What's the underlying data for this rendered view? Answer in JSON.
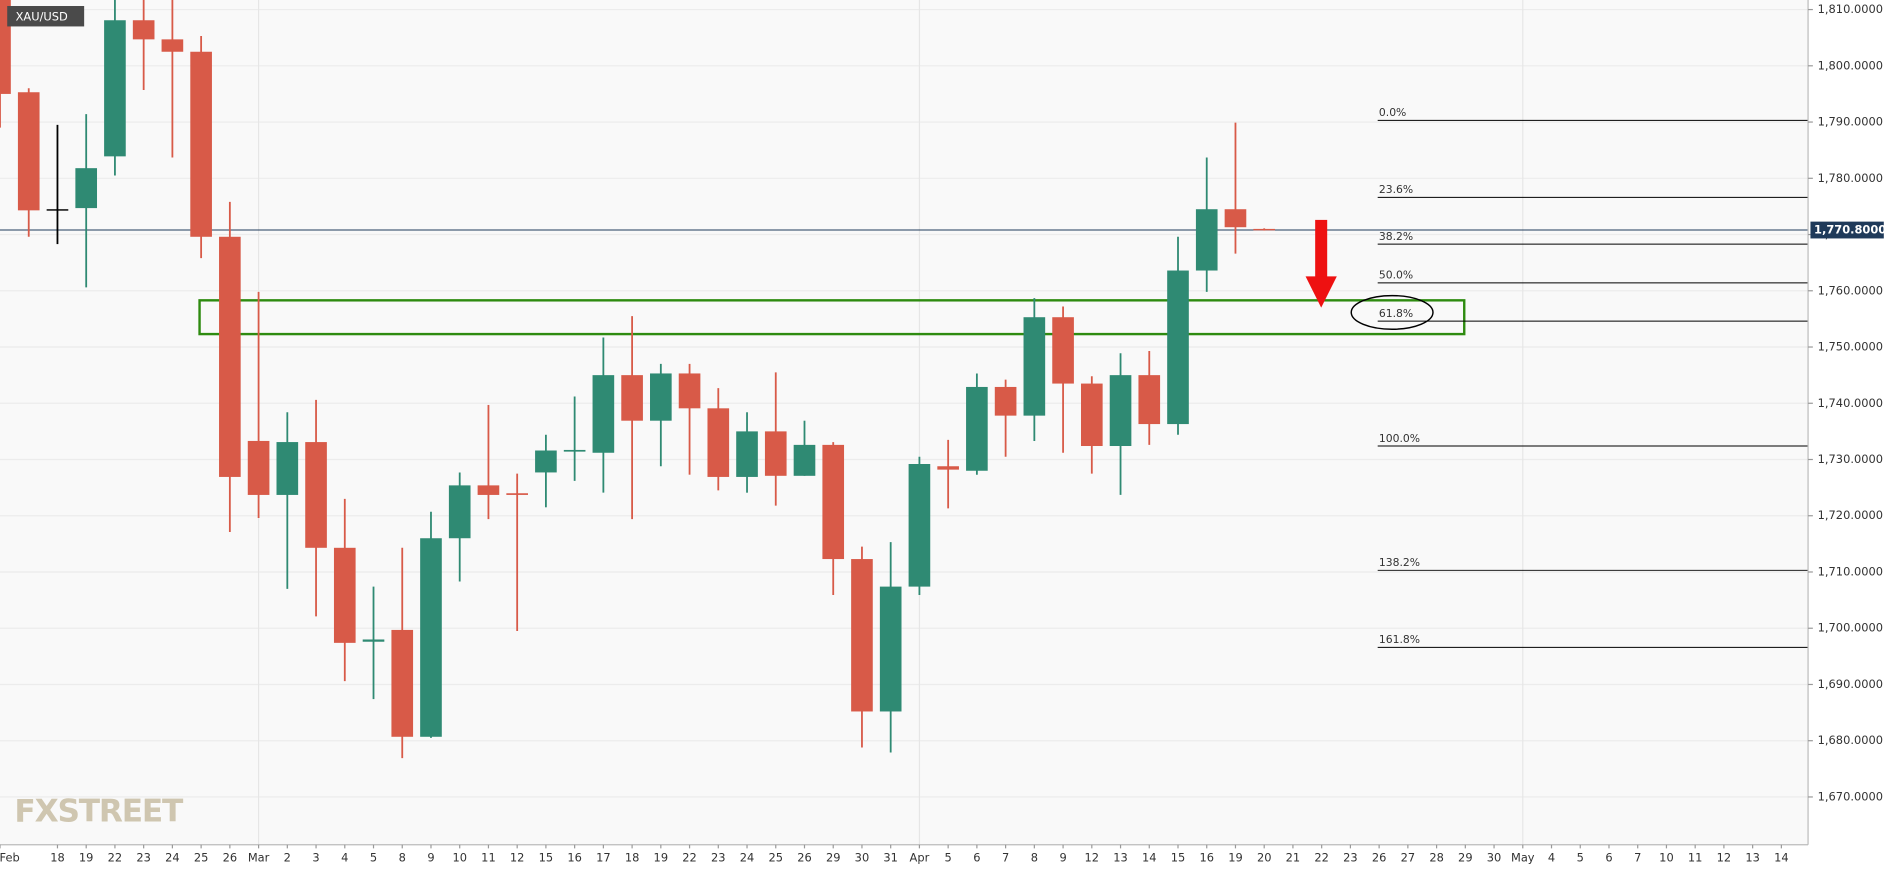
{
  "chart_data": {
    "type": "candlestick",
    "symbol": "XAU/USD",
    "watermark": "FXSTREET",
    "categories": [
      "Feb",
      null,
      "18",
      "19",
      "22",
      "23",
      "24",
      "25",
      "26",
      "Mar",
      "2",
      "3",
      "4",
      "5",
      "8",
      "9",
      "10",
      "11",
      "12",
      "15",
      "16",
      "17",
      "18",
      "19",
      "22",
      "23",
      "24",
      "25",
      "26",
      "29",
      "30",
      "31",
      "Apr",
      "5",
      "6",
      "7",
      "8",
      "9",
      "12",
      "13",
      "14",
      "15",
      "16",
      "19",
      "20",
      "21",
      "22",
      "23",
      "26",
      "27",
      "28",
      "29",
      "30",
      "May",
      "4",
      "5",
      "6",
      "7",
      "10",
      "11",
      "12",
      "13",
      "14"
    ],
    "open": [
      1818,
      1795.3,
      1774.5,
      1774.7,
      1783.9,
      1808.1,
      1804.7,
      1802.5,
      1769.6,
      1733.3,
      1723.7,
      1733.1,
      1714.3,
      1697.6,
      1699.7,
      1680.7,
      1716,
      1725.4,
      1724,
      1727.7,
      1731.4,
      1731.2,
      1745,
      1736.9,
      1745.3,
      1739.1,
      1726.9,
      1735,
      1727.1,
      1732.6,
      1712.3,
      1685.2,
      1707.4,
      1728.8,
      1728,
      1742.9,
      1737.8,
      1755.3,
      1743.5,
      1732.4,
      1745,
      1736.3,
      1763.6,
      1774.5,
      1771,
      null,
      null,
      null,
      null,
      null,
      null,
      null,
      null,
      null,
      null,
      null,
      null,
      null,
      null,
      null,
      null,
      null,
      null
    ],
    "high": [
      1820,
      1796,
      1789.5,
      1791.4,
      1813,
      1815,
      1813,
      1805.3,
      1775.8,
      1759.8,
      1738.4,
      1740.6,
      1723,
      1707.4,
      1714.3,
      1720.7,
      1727.7,
      1739.7,
      1727.5,
      1734.4,
      1741.2,
      1751.7,
      1755.5,
      1747,
      1747,
      1742.7,
      1738.4,
      1745.5,
      1736.9,
      1733.1,
      1714.5,
      1715.3,
      1730.5,
      1733.5,
      1745.3,
      1744.2,
      1758.7,
      1757.2,
      1744.8,
      1748.9,
      1749.3,
      1769.6,
      1783.7,
      1789.9,
      1771.1,
      null,
      null,
      null,
      null,
      null,
      null,
      null,
      null,
      null,
      null,
      null,
      null,
      null,
      null,
      null,
      null,
      null,
      null
    ],
    "low": [
      1789,
      1769.6,
      1768.3,
      1760.6,
      1780.5,
      1795.7,
      1783.7,
      1765.8,
      1717.1,
      1719.6,
      1707,
      1702.1,
      1690.6,
      1687.4,
      1676.9,
      1680.5,
      1708.3,
      1719.4,
      1699.5,
      1721.5,
      1726.2,
      1724.1,
      1719.4,
      1728.8,
      1727.3,
      1724.5,
      1724.1,
      1721.8,
      1727.1,
      1705.9,
      1678.8,
      1677.9,
      1705.9,
      1721.3,
      1727.3,
      1730.5,
      1733.3,
      1731.2,
      1727.5,
      1723.7,
      1732.6,
      1734.4,
      1759.8,
      1766.6,
      1770.7,
      null,
      null,
      null,
      null,
      null,
      null,
      null,
      null,
      null,
      null,
      null,
      null,
      null,
      null,
      null,
      null,
      null,
      null
    ],
    "close": [
      1795,
      1774.3,
      1774.5,
      1781.8,
      1808.1,
      1804.7,
      1802.5,
      1769.6,
      1726.9,
      1723.7,
      1733.1,
      1714.3,
      1697.4,
      1698,
      1680.7,
      1716,
      1725.4,
      1723.7,
      1723.7,
      1731.6,
      1731.7,
      1745,
      1736.9,
      1745.3,
      1739.1,
      1726.9,
      1735,
      1727.1,
      1732.6,
      1712.3,
      1685.2,
      1707.4,
      1729.2,
      1728.2,
      1742.9,
      1737.8,
      1755.3,
      1743.5,
      1732.4,
      1745,
      1736.3,
      1763.6,
      1774.5,
      1771.3,
      1770.8,
      null,
      null,
      null,
      null,
      null,
      null,
      null,
      null,
      null,
      null,
      null,
      null,
      null,
      null,
      null,
      null,
      null,
      null
    ],
    "colors": {
      "up": "#2f8a73",
      "down": "#d85a48",
      "flat": "#000000"
    },
    "ylim": [
      1661.5,
      1811.7
    ],
    "yticks": [
      {
        "value": 1670,
        "label": "1,670.0000"
      },
      {
        "value": 1680,
        "label": "1,680.0000"
      },
      {
        "value": 1690,
        "label": "1,690.0000"
      },
      {
        "value": 1700,
        "label": "1,700.0000"
      },
      {
        "value": 1710,
        "label": "1,710.0000"
      },
      {
        "value": 1720,
        "label": "1,720.0000"
      },
      {
        "value": 1730,
        "label": "1,730.0000"
      },
      {
        "value": 1740,
        "label": "1,740.0000"
      },
      {
        "value": 1750,
        "label": "1,750.0000"
      },
      {
        "value": 1760,
        "label": "1,760.0000"
      },
      {
        "value": 1770,
        "label": "1,770.0000"
      },
      {
        "value": 1780,
        "label": "1,780.0000"
      },
      {
        "value": 1790,
        "label": "1,790.0000"
      },
      {
        "value": 1800,
        "label": "1,800.0000"
      },
      {
        "value": 1810,
        "label": "1,810.0000"
      }
    ],
    "grid": true,
    "last_price": {
      "value": 1770.8,
      "label": "1,770.8000",
      "color": "#1f3a5a"
    },
    "fib_levels": [
      {
        "label": "0.0%",
        "value": 1790.3
      },
      {
        "label": "23.6%",
        "value": 1776.6
      },
      {
        "label": "38.2%",
        "value": 1768.3
      },
      {
        "label": "50.0%",
        "value": 1761.4
      },
      {
        "label": "61.8%",
        "value": 1754.6
      },
      {
        "label": "100.0%",
        "value": 1732.4
      },
      {
        "label": "138.2%",
        "value": 1710.3
      },
      {
        "label": "161.8%",
        "value": 1696.6
      }
    ],
    "zone": {
      "low": 1752.3,
      "high": 1758.3,
      "color": "#2e8b10"
    }
  }
}
